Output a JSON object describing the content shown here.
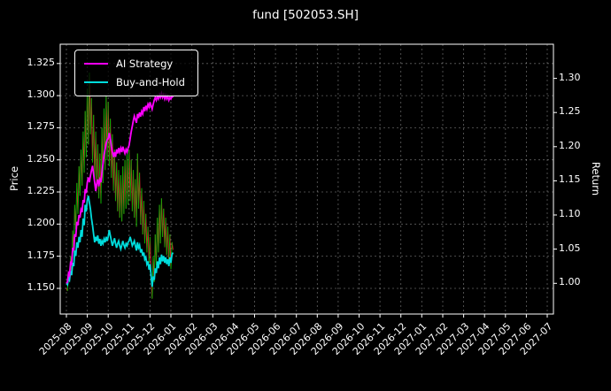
{
  "chart_data": {
    "type": "line",
    "title": "fund [502053.SH]",
    "ylabel_left": "Price",
    "ylabel_right": "Return",
    "background": "#000000",
    "text_color": "#ffffff",
    "grid": true,
    "legend_position": "upper-left",
    "x_tick_labels": [
      "2025-08",
      "2025-09",
      "2025-10",
      "2025-11",
      "2025-12",
      "2026-01",
      "2026-02",
      "2026-03",
      "2026-04",
      "2026-05",
      "2026-06",
      "2026-07",
      "2026-08",
      "2026-09",
      "2026-10",
      "2026-11",
      "2026-12",
      "2027-01",
      "2027-02",
      "2027-03",
      "2027-04",
      "2027-05",
      "2027-06",
      "2027-07"
    ],
    "left_axis": {
      "ticks": [
        1.15,
        1.175,
        1.2,
        1.225,
        1.25,
        1.275,
        1.3,
        1.325
      ],
      "tick_labels": [
        "1.150",
        "1.175",
        "1.200",
        "1.225",
        "1.250",
        "1.275",
        "1.300",
        "1.325"
      ],
      "range": [
        1.13,
        1.34
      ]
    },
    "right_axis": {
      "ticks": [
        1.0,
        1.05,
        1.1,
        1.15,
        1.2,
        1.25,
        1.3
      ],
      "tick_labels": [
        "1.00",
        "1.05",
        "1.10",
        "1.15",
        "1.20",
        "1.25",
        "1.30"
      ],
      "range": [
        0.955,
        1.35
      ]
    },
    "series": [
      {
        "name": "AI Strategy",
        "axis": "right",
        "color": "#ff00ff",
        "x0": 0,
        "dx": 0.05,
        "y": [
          1.0,
          1.002,
          1.015,
          1.012,
          1.03,
          1.028,
          1.052,
          1.048,
          1.072,
          1.068,
          1.09,
          1.085,
          1.1,
          1.096,
          1.108,
          1.104,
          1.122,
          1.118,
          1.138,
          1.132,
          1.148,
          1.155,
          1.148,
          1.158,
          1.165,
          1.172,
          1.16,
          1.148,
          1.135,
          1.146,
          1.152,
          1.142,
          1.152,
          1.148,
          1.162,
          1.175,
          1.188,
          1.196,
          1.205,
          1.21,
          1.212,
          1.22,
          1.212,
          1.2,
          1.192,
          1.185,
          1.192,
          1.185,
          1.196,
          1.19,
          1.198,
          1.192,
          1.198,
          1.192,
          1.2,
          1.195,
          1.19,
          1.196,
          1.192,
          1.198,
          1.202,
          1.212,
          1.222,
          1.23,
          1.238,
          1.245,
          1.24,
          1.235,
          1.248,
          1.242,
          1.25,
          1.244,
          1.252,
          1.248,
          1.258,
          1.252,
          1.26,
          1.255,
          1.262,
          1.258,
          1.265,
          1.26,
          1.255,
          1.262,
          1.268,
          1.272,
          1.268,
          1.274,
          1.27,
          1.276,
          1.272,
          1.278,
          1.272,
          1.276,
          1.27,
          1.275,
          1.27,
          1.274,
          1.268,
          1.272,
          1.27,
          1.274,
          1.272
        ]
      },
      {
        "name": "Buy-and-Hold",
        "axis": "right",
        "color": "#00dcdc",
        "x0": 0,
        "dx": 0.05,
        "y": [
          1.0,
          0.998,
          1.008,
          1.005,
          1.018,
          1.012,
          1.03,
          1.025,
          1.048,
          1.04,
          1.06,
          1.052,
          1.068,
          1.06,
          1.078,
          1.068,
          1.095,
          1.085,
          1.115,
          1.105,
          1.122,
          1.128,
          1.118,
          1.108,
          1.095,
          1.085,
          1.072,
          1.06,
          1.068,
          1.062,
          1.07,
          1.058,
          1.065,
          1.055,
          1.062,
          1.058,
          1.065,
          1.06,
          1.068,
          1.062,
          1.068,
          1.078,
          1.07,
          1.062,
          1.055,
          1.06,
          1.066,
          1.058,
          1.052,
          1.058,
          1.062,
          1.055,
          1.05,
          1.056,
          1.062,
          1.056,
          1.052,
          1.058,
          1.055,
          1.06,
          1.062,
          1.068,
          1.062,
          1.055,
          1.058,
          1.062,
          1.055,
          1.048,
          1.06,
          1.052,
          1.056,
          1.045,
          1.05,
          1.04,
          1.045,
          1.035,
          1.038,
          1.028,
          1.032,
          1.02,
          1.028,
          1.012,
          0.995,
          1.01,
          1.005,
          1.022,
          1.015,
          1.032,
          1.022,
          1.038,
          1.028,
          1.042,
          1.032,
          1.04,
          1.03,
          1.038,
          1.028,
          1.035,
          1.025,
          1.038,
          1.03,
          1.042,
          1.045
        ]
      },
      {
        "name": "price",
        "axis": "left",
        "style": "updown-segments",
        "colors": {
          "up": "#00b300",
          "down": "#d62b2b"
        },
        "x0": 0,
        "dx": 0.05,
        "y": [
          1.15,
          1.148,
          1.162,
          1.155,
          1.175,
          1.16,
          1.195,
          1.178,
          1.215,
          1.196,
          1.232,
          1.208,
          1.245,
          1.222,
          1.258,
          1.23,
          1.272,
          1.24,
          1.288,
          1.252,
          1.305,
          1.262,
          1.318,
          1.27,
          1.298,
          1.248,
          1.285,
          1.235,
          1.272,
          1.228,
          1.262,
          1.22,
          1.255,
          1.216,
          1.275,
          1.232,
          1.29,
          1.242,
          1.3,
          1.25,
          1.295,
          1.245,
          1.282,
          1.236,
          1.27,
          1.226,
          1.258,
          1.218,
          1.248,
          1.21,
          1.242,
          1.205,
          1.238,
          1.202,
          1.245,
          1.208,
          1.25,
          1.212,
          1.255,
          1.215,
          1.258,
          1.218,
          1.25,
          1.21,
          1.242,
          1.205,
          1.235,
          1.198,
          1.255,
          1.212,
          1.24,
          1.2,
          1.228,
          1.192,
          1.218,
          1.185,
          1.208,
          1.178,
          1.198,
          1.17,
          1.19,
          1.16,
          1.142,
          1.175,
          1.155,
          1.192,
          1.168,
          1.205,
          1.178,
          1.215,
          1.185,
          1.22,
          1.19,
          1.212,
          1.182,
          1.205,
          1.176,
          1.198,
          1.17,
          1.192,
          1.165,
          1.186,
          1.18
        ]
      }
    ]
  }
}
